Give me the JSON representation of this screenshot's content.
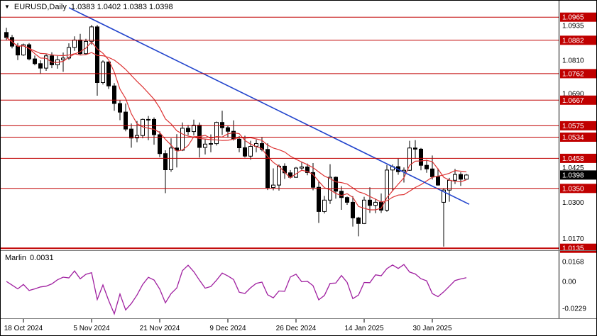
{
  "header": {
    "marker": "▼",
    "symbol_period": "EURUSD,Daily",
    "ohlc": "1.0383 1.0402 1.0383 1.0398"
  },
  "indicator_header": {
    "name": "Marlin",
    "value": "0.0031"
  },
  "colors": {
    "background": "#ffffff",
    "level_red": "#c00000",
    "label_box_red": "#c00000",
    "current_box_black": "#000000",
    "ma_red": "#dd3333",
    "trendline_blue": "#2244cc",
    "marlin_purple": "#a020a0",
    "bull_fill": "#ffffff",
    "bear_fill": "#000000",
    "wick_black": "#000000",
    "separator_gray": "#7a7a7a",
    "axis_text": "#000000"
  },
  "chart_data": {
    "type": "candlestick",
    "symbol": "EURUSD",
    "timeframe": "Daily",
    "current": {
      "open": 1.0383,
      "high": 1.0402,
      "low": 1.0383,
      "close": 1.0398
    },
    "y_axis": {
      "range": [
        1.0128,
        1.1024
      ],
      "plain_labels": [
        "1.0935",
        "1.0810",
        "1.0690",
        "1.0425",
        "1.0300",
        "1.0170"
      ],
      "current_label": "1.0398"
    },
    "levels": [
      {
        "price": "1.0965"
      },
      {
        "price": "1.0882"
      },
      {
        "price": "1.0762"
      },
      {
        "price": "1.0667"
      },
      {
        "price": "1.0575"
      },
      {
        "price": "1.0534"
      },
      {
        "price": "1.0458"
      },
      {
        "price": "1.0350"
      },
      {
        "price": "1.0135",
        "thick": true
      }
    ],
    "trendline": {
      "from_index": 11,
      "from_price": 1.0999,
      "to_index": 81.5,
      "to_price": 1.0293
    },
    "moving_averages": [
      {
        "name": "fast",
        "period": 5
      },
      {
        "name": "slow",
        "period": 13
      }
    ],
    "x_axis": {
      "ticks": [
        {
          "label": "18 Oct 2024",
          "index": 3
        },
        {
          "label": "5 Nov 2024",
          "index": 15
        },
        {
          "label": "21 Nov 2024",
          "index": 27
        },
        {
          "label": "9 Dec 2024",
          "index": 39
        },
        {
          "label": "26 Dec 2024",
          "index": 51
        },
        {
          "label": "14 Jan 2025",
          "index": 63
        },
        {
          "label": "30 Jan 2025",
          "index": 75
        }
      ]
    },
    "candles": [
      [
        1.091,
        1.0927,
        1.0882,
        1.0892
      ],
      [
        1.0892,
        1.0901,
        1.0853,
        1.0861
      ],
      [
        1.0861,
        1.0872,
        1.0811,
        1.0829
      ],
      [
        1.0829,
        1.087,
        1.0826,
        1.0866
      ],
      [
        1.0866,
        1.0872,
        1.081,
        1.0815
      ],
      [
        1.0815,
        1.0827,
        1.0792,
        1.0798
      ],
      [
        1.0798,
        1.081,
        1.0761,
        1.0782
      ],
      [
        1.0782,
        1.0832,
        1.0772,
        1.0826
      ],
      [
        1.0826,
        1.0839,
        1.0782,
        1.0794
      ],
      [
        1.0794,
        1.0826,
        1.078,
        1.0812
      ],
      [
        1.0812,
        1.0838,
        1.0769,
        1.0818
      ],
      [
        1.0818,
        1.0871,
        1.0812,
        1.0856
      ],
      [
        1.0856,
        1.0896,
        1.0844,
        1.0883
      ],
      [
        1.0883,
        1.0905,
        1.0828,
        1.0834
      ],
      [
        1.0834,
        1.0887,
        1.083,
        1.0878
      ],
      [
        1.0878,
        1.0937,
        1.0866,
        1.093
      ],
      [
        1.093,
        1.0937,
        1.0683,
        1.073
      ],
      [
        1.073,
        1.081,
        1.0723,
        1.0804
      ],
      [
        1.0804,
        1.0806,
        1.0707,
        1.0718
      ],
      [
        1.0718,
        1.0728,
        1.0629,
        1.0655
      ],
      [
        1.0655,
        1.0666,
        1.0595,
        1.0624
      ],
      [
        1.0624,
        1.0655,
        1.0555,
        1.0563
      ],
      [
        1.0563,
        1.0583,
        1.0496,
        1.0531
      ],
      [
        1.0531,
        1.0592,
        1.0516,
        1.054
      ],
      [
        1.054,
        1.0601,
        1.053,
        1.0598
      ],
      [
        1.0598,
        1.061,
        1.0523,
        1.0598
      ],
      [
        1.0598,
        1.0605,
        1.0507,
        1.0543
      ],
      [
        1.0543,
        1.0555,
        1.0462,
        1.0475
      ],
      [
        1.0475,
        1.0487,
        1.0333,
        1.0417
      ],
      [
        1.0417,
        1.053,
        1.041,
        1.0495
      ],
      [
        1.0495,
        1.0545,
        1.0425,
        1.0487
      ],
      [
        1.0487,
        1.0587,
        1.0484,
        1.0566
      ],
      [
        1.0566,
        1.0578,
        1.0541,
        1.0554
      ],
      [
        1.0554,
        1.0597,
        1.054,
        1.0577
      ],
      [
        1.0577,
        1.0587,
        1.0461,
        1.0497
      ],
      [
        1.0497,
        1.0528,
        1.0472,
        1.0509
      ],
      [
        1.0509,
        1.0544,
        1.048,
        1.0511
      ],
      [
        1.0511,
        1.059,
        1.0504,
        1.0587
      ],
      [
        1.0587,
        1.0629,
        1.0542,
        1.0568
      ],
      [
        1.0568,
        1.0576,
        1.0532,
        1.0555
      ],
      [
        1.0555,
        1.0594,
        1.0522,
        1.0527
      ],
      [
        1.0527,
        1.0538,
        1.048,
        1.0496
      ],
      [
        1.0496,
        1.0539,
        1.0461,
        1.0466
      ],
      [
        1.0466,
        1.0521,
        1.0453,
        1.0501
      ],
      [
        1.0501,
        1.0525,
        1.048,
        1.0511
      ],
      [
        1.0511,
        1.0535,
        1.0483,
        1.049
      ],
      [
        1.049,
        1.0512,
        1.0344,
        1.0353
      ],
      [
        1.0353,
        1.0422,
        1.0343,
        1.0362
      ],
      [
        1.0362,
        1.0436,
        1.0342,
        1.043
      ],
      [
        1.043,
        1.044,
        1.0384,
        1.0406
      ],
      [
        1.0406,
        1.0416,
        1.0385,
        1.039
      ],
      [
        1.039,
        1.0427,
        1.0388,
        1.0423
      ],
      [
        1.0423,
        1.0445,
        1.0415,
        1.0427
      ],
      [
        1.0427,
        1.0439,
        1.0397,
        1.0407
      ],
      [
        1.0407,
        1.0441,
        1.0343,
        1.0354
      ],
      [
        1.0354,
        1.0375,
        1.0226,
        1.0267
      ],
      [
        1.0267,
        1.0323,
        1.026,
        1.0308
      ],
      [
        1.0308,
        1.0437,
        1.0294,
        1.039
      ],
      [
        1.039,
        1.0393,
        1.0313,
        1.034
      ],
      [
        1.034,
        1.0358,
        1.0273,
        1.0317
      ],
      [
        1.0317,
        1.0321,
        1.0291,
        1.03
      ],
      [
        1.03,
        1.0322,
        1.0213,
        1.0244
      ],
      [
        1.0244,
        1.0248,
        1.0178,
        1.0224
      ],
      [
        1.0224,
        1.032,
        1.0222,
        1.0308
      ],
      [
        1.0308,
        1.0354,
        1.0262,
        1.0289
      ],
      [
        1.0289,
        1.0313,
        1.0261,
        1.03
      ],
      [
        1.03,
        1.0332,
        1.0262,
        1.0272
      ],
      [
        1.0272,
        1.0434,
        1.0266,
        1.0416
      ],
      [
        1.0416,
        1.0436,
        1.0341,
        1.0428
      ],
      [
        1.0428,
        1.0457,
        1.0399,
        1.041
      ],
      [
        1.041,
        1.0425,
        1.0371,
        1.0415
      ],
      [
        1.0415,
        1.0521,
        1.0413,
        1.0495
      ],
      [
        1.0495,
        1.0523,
        1.0456,
        1.0491
      ],
      [
        1.0491,
        1.0495,
        1.0415,
        1.0433
      ],
      [
        1.0433,
        1.0453,
        1.0406,
        1.042
      ],
      [
        1.042,
        1.0468,
        1.0382,
        1.0392
      ],
      [
        1.0392,
        1.0422,
        1.036,
        1.0362
      ],
      [
        1.03,
        1.035,
        1.0141,
        1.0344
      ],
      [
        1.0344,
        1.0388,
        1.0302,
        1.0379
      ],
      [
        1.0379,
        1.042,
        1.0366,
        1.04
      ],
      [
        1.04,
        1.0408,
        1.0359,
        1.0383
      ],
      [
        1.0383,
        1.0402,
        1.0383,
        1.0398
      ]
    ],
    "indicator": {
      "name": "Marlin",
      "current_value": "0.0031",
      "range": [
        -0.0312,
        0.0228
      ],
      "axis_labels": [
        {
          "text": "0.0168",
          "value": 0.0168
        },
        {
          "text": "0.00",
          "value": 0
        },
        {
          "text": "-0.0229",
          "value": -0.0229
        }
      ],
      "values": [
        0.0,
        -0.0031,
        -0.0063,
        -0.0026,
        -0.0077,
        -0.0063,
        -0.0047,
        -0.004,
        -0.0021,
        0.0014,
        0.0036,
        0.003,
        0.0089,
        0.0022,
        0.006,
        0.0074,
        -0.0153,
        -0.003,
        -0.016,
        -0.0275,
        -0.0106,
        -0.0241,
        -0.0187,
        -0.0115,
        -0.0026,
        0.0035,
        0.0012,
        -0.0065,
        -0.0181,
        -0.0103,
        -0.0056,
        0.0091,
        0.0137,
        0.0082,
        0.001,
        -0.0057,
        -0.0043,
        0.001,
        0.0071,
        0.0046,
        0.0016,
        -0.0091,
        -0.0102,
        -0.0054,
        -0.0016,
        -0.0006,
        -0.0113,
        -0.0139,
        -0.0081,
        -0.0084,
        0.0037,
        0.0061,
        -0.0003,
        0.0001,
        -0.0036,
        -0.0156,
        -0.0119,
        -0.0017,
        -0.0014,
        0.005,
        -0.0008,
        -0.0146,
        -0.0116,
        -0.0009,
        -0.0011,
        0.0056,
        0.0048,
        0.0108,
        0.0139,
        0.011,
        0.0143,
        0.0079,
        0.0063,
        0.0023,
        0.0005,
        -0.0103,
        -0.0129,
        -0.0089,
        -0.0041,
        0.0008,
        0.0021,
        0.0031
      ]
    }
  }
}
